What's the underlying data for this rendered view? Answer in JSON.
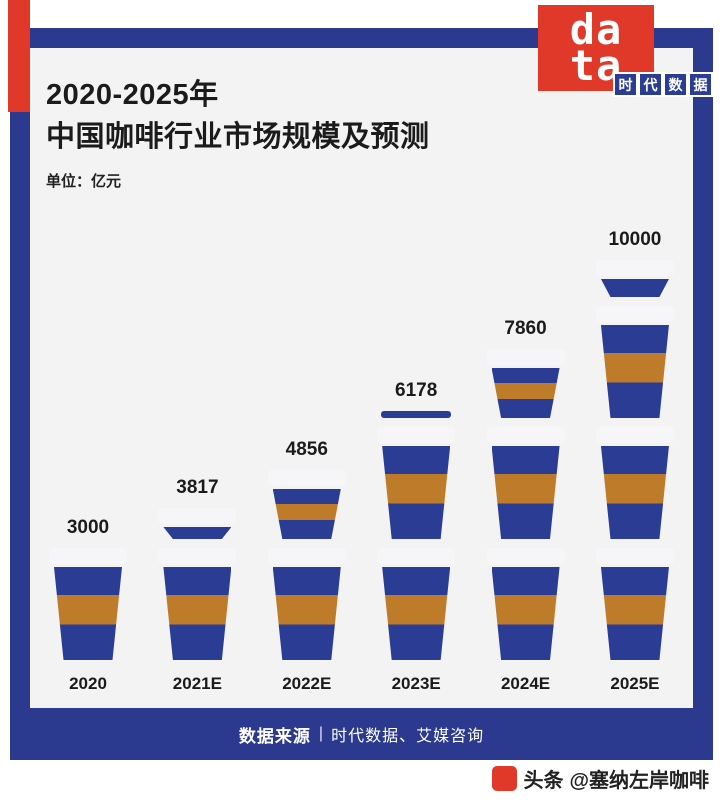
{
  "colors": {
    "frame_blue": "#2B3A8F",
    "cup_blue": "#2B3C94",
    "band_orange": "#BE7C2B",
    "lid_white": "#F6F6F8",
    "accent_red": "#E0392A",
    "panel_gray": "#F3F3F3",
    "ink": "#1B1B1B"
  },
  "logo": {
    "word": "data",
    "brand": "时代数据"
  },
  "header": {
    "title_line1": "2020-2025年",
    "title_line2": "中国咖啡行业市场规模及预测",
    "unit_label": "单位：亿元"
  },
  "chart_data": {
    "type": "bar",
    "title": "2020-2025年中国咖啡行业市场规模及预测",
    "unit": "亿元",
    "categories": [
      "2020",
      "2021E",
      "2022E",
      "2023E",
      "2024E",
      "2025E"
    ],
    "values": [
      3000,
      3817,
      4856,
      6178,
      7860,
      10000
    ],
    "icon_unit_value": 3000,
    "legend": "none",
    "grid": "off"
  },
  "footer": {
    "source_label": "数据来源",
    "separator": "|",
    "sources": "时代数据、艾媒咨询"
  },
  "credit": {
    "platform": "头条",
    "handle": "@塞纳左岸咖啡"
  }
}
